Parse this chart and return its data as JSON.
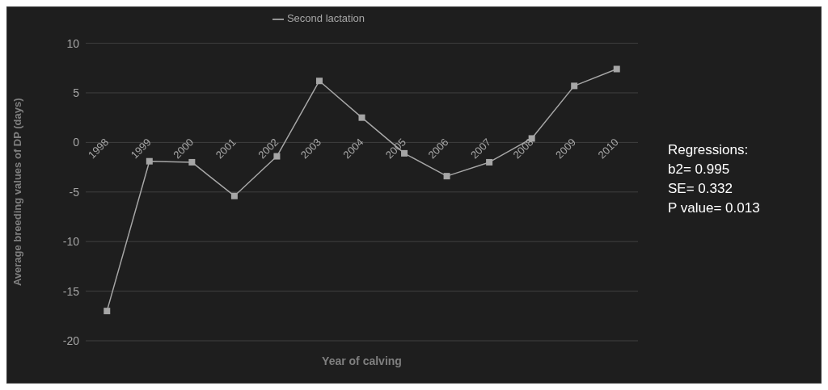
{
  "chart_data": {
    "type": "line",
    "xlabel": "Year of calving",
    "ylabel": "Average breeding values of DP (days)",
    "categories": [
      "1998",
      "1999",
      "2000",
      "2001",
      "2002",
      "2003",
      "2004",
      "2005",
      "2006",
      "2007",
      "2008",
      "2009",
      "2010"
    ],
    "series": [
      {
        "name": "Second lactation",
        "color": "#a6a6a6",
        "values": [
          -17.0,
          -1.9,
          -2.0,
          -5.4,
          -1.4,
          6.2,
          2.5,
          -1.1,
          -3.4,
          -2.0,
          0.4,
          5.7,
          7.4
        ]
      }
    ],
    "ylim": [
      -20,
      10
    ],
    "yticks": [
      -20,
      -15,
      -10,
      -5,
      0,
      5,
      10
    ],
    "grid": "y",
    "legend": "top",
    "marker": "square",
    "line_style": "solid",
    "annotations": [
      "Regressions:",
      "b2= 0.995",
      "SE= 0.332",
      "P value= 0.013"
    ]
  }
}
